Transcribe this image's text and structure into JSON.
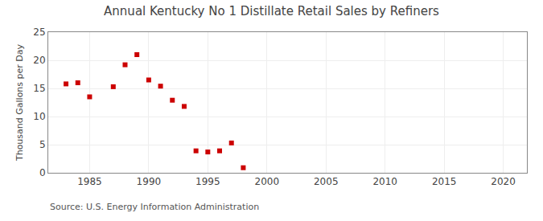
{
  "chart_data": {
    "type": "scatter",
    "title": "Annual Kentucky No 1 Distillate Retail Sales by Refiners",
    "ylabel": "Thousand Gallons per Day",
    "annotations": [
      "Source: U.S. Energy Information Administration"
    ],
    "x": [
      1983,
      1984,
      1985,
      1987,
      1988,
      1989,
      1990,
      1991,
      1992,
      1993,
      1994,
      1995,
      1996,
      1997,
      1998
    ],
    "values": [
      15.8,
      16.0,
      13.5,
      15.3,
      19.2,
      21.0,
      16.5,
      15.4,
      12.9,
      11.8,
      3.9,
      3.7,
      3.9,
      5.3,
      0.9
    ],
    "color": "#cc0000",
    "marker": "square",
    "xlim": [
      1981.5,
      2022
    ],
    "xticks": [
      1985,
      1990,
      1995,
      2000,
      2005,
      2010,
      2015,
      2020
    ],
    "ylim": [
      0,
      25
    ],
    "yticks": [
      0,
      5,
      10,
      15,
      20,
      25
    ],
    "grid": true
  }
}
